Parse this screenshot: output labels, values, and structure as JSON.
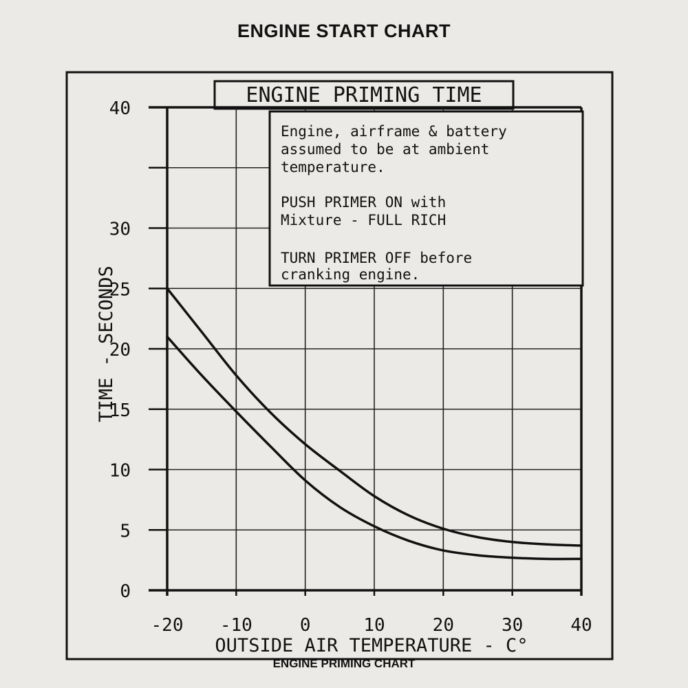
{
  "page": {
    "title": "ENGINE START CHART",
    "caption": "ENGINE PRIMING CHART"
  },
  "chart_data": {
    "type": "line",
    "title": "ENGINE PRIMING TIME",
    "xlabel": "OUTSIDE AIR TEMPERATURE - C°",
    "ylabel": "TIME - SECONDS",
    "xlim": [
      -20,
      40
    ],
    "ylim": [
      0,
      40
    ],
    "x_ticks": [
      -20,
      -10,
      0,
      10,
      20,
      30,
      40
    ],
    "y_ticks": [
      0,
      5,
      10,
      15,
      20,
      25,
      30,
      35,
      40
    ],
    "y_tick_labels": [
      "0",
      "5",
      "10",
      "15",
      "20",
      "25",
      "30",
      "",
      "40"
    ],
    "grid": true,
    "series": [
      {
        "color": "#111111",
        "x": [
          -20,
          -15,
          -10,
          -5,
          0,
          5,
          10,
          15,
          20,
          25,
          30,
          35,
          40
        ],
        "y": [
          25.0,
          21.4,
          17.8,
          14.7,
          12.1,
          9.9,
          7.8,
          6.2,
          5.1,
          4.4,
          4.0,
          3.8,
          3.7
        ]
      },
      {
        "color": "#111111",
        "x": [
          -20,
          -15,
          -10,
          -5,
          0,
          5,
          10,
          15,
          20,
          25,
          30,
          35,
          40
        ],
        "y": [
          21.0,
          17.8,
          14.8,
          11.9,
          9.1,
          6.9,
          5.3,
          4.1,
          3.3,
          2.9,
          2.7,
          2.6,
          2.6
        ]
      }
    ],
    "note": {
      "line1": "Engine, airframe & battery",
      "line2": "assumed to be at ambient",
      "line3": "temperature.",
      "line4": "PUSH PRIMER ON with",
      "line5": "Mixture - FULL RICH",
      "line6": "TURN PRIMER OFF before",
      "line7": "cranking engine."
    }
  }
}
